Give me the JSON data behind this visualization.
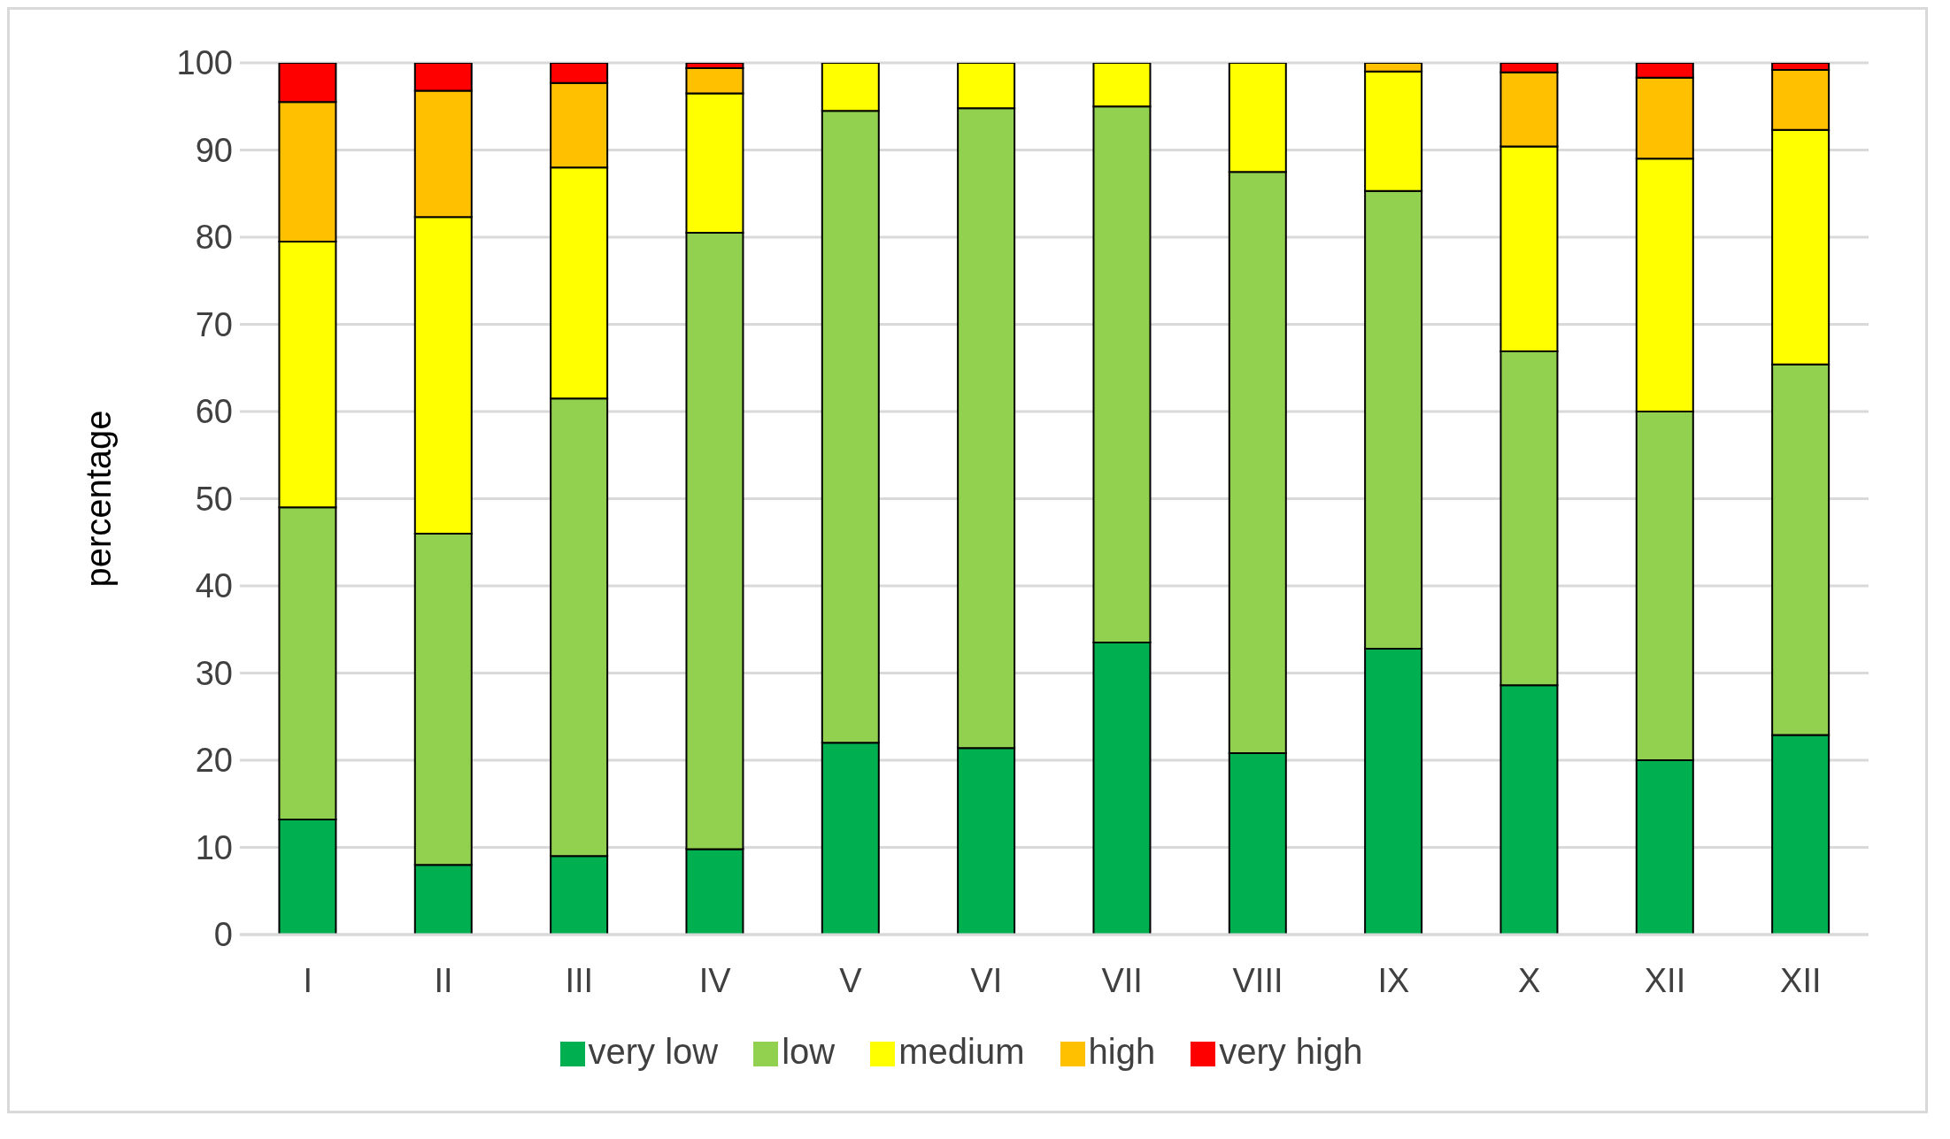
{
  "chart_data": {
    "type": "bar",
    "stacked": true,
    "ylabel": "percentage",
    "categories": [
      "I",
      "II",
      "III",
      "IV",
      "V",
      "VI",
      "VII",
      "VIII",
      "IX",
      "X",
      "XII",
      "XII"
    ],
    "series": [
      {
        "name": "very low",
        "color": "#00b050",
        "values": [
          13.2,
          8,
          9,
          9.8,
          22,
          21.4,
          33.5,
          20.8,
          32.8,
          28.6,
          20,
          22.9
        ]
      },
      {
        "name": "low",
        "color": "#92d050",
        "values": [
          35.8,
          38,
          52.5,
          70.7,
          72.5,
          73.4,
          61.5,
          66.7,
          52.5,
          38.3,
          40,
          42.5
        ]
      },
      {
        "name": "medium",
        "color": "#ffff00",
        "values": [
          30.5,
          36.3,
          26.5,
          16,
          5.5,
          5.2,
          5,
          12.5,
          13.7,
          23.5,
          29,
          26.9
        ]
      },
      {
        "name": "high",
        "color": "#ffc000",
        "values": [
          16,
          14.5,
          9.7,
          2.9,
          0,
          0,
          0,
          0,
          1,
          8.5,
          9.3,
          6.9
        ]
      },
      {
        "name": "very high",
        "color": "#ff0000",
        "values": [
          4.5,
          3.2,
          2.3,
          0.6,
          0,
          0,
          0,
          0,
          0,
          1.1,
          1.7,
          0.8
        ]
      }
    ],
    "ylim": [
      0,
      100
    ],
    "yticks": [
      0,
      10,
      20,
      30,
      40,
      50,
      60,
      70,
      80,
      90,
      100
    ],
    "grid": "y",
    "legend": "bottom"
  }
}
